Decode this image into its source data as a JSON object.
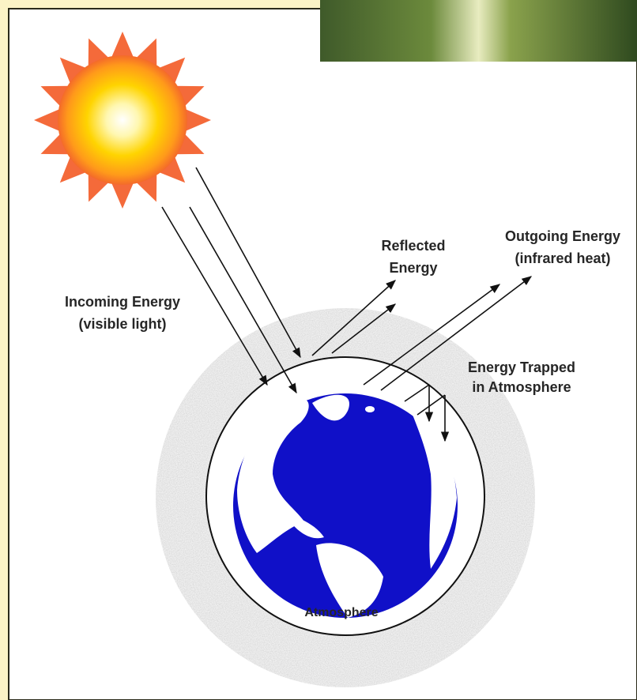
{
  "labels": {
    "incoming": [
      "Incoming Energy",
      "(visible light)"
    ],
    "reflected": [
      "Reflected",
      "Energy"
    ],
    "outgoing": [
      "Outgoing Energy",
      "(infrared heat)"
    ],
    "trapped": [
      "Energy Trapped",
      "in Atmosphere"
    ],
    "atmosphere": "Atmosphere"
  }
}
